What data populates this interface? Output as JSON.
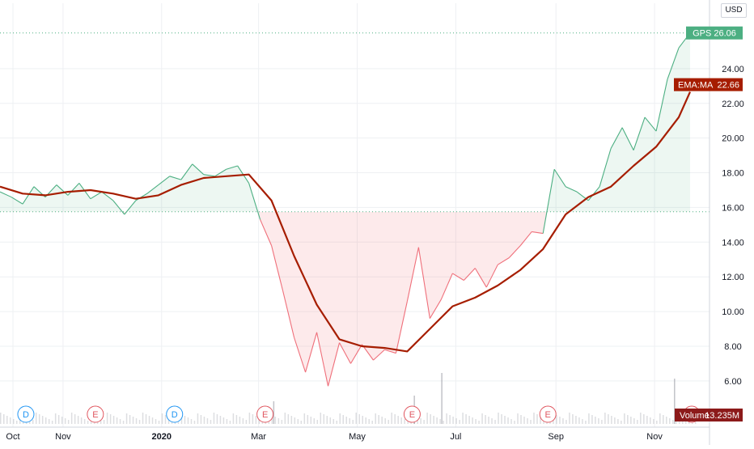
{
  "currency": "USD",
  "price_tag": {
    "text": "GPS  26.06",
    "color": "#4caf82"
  },
  "ema_tag": {
    "label": "EMA:MA",
    "value": "22.66",
    "color": "#a61d00"
  },
  "volume_tag": {
    "label": "Volume",
    "value": "13.235M",
    "color": "#8c1a1a"
  },
  "markers": [
    {
      "letter": "D",
      "kind": "dividend",
      "date": "2019-10-09"
    },
    {
      "letter": "E",
      "kind": "earnings",
      "date": "2019-11-21"
    },
    {
      "letter": "D",
      "kind": "dividend",
      "date": "2020-01-09"
    },
    {
      "letter": "E",
      "kind": "earnings",
      "date": "2020-03-05"
    },
    {
      "letter": "E",
      "kind": "earnings",
      "date": "2020-06-04"
    },
    {
      "letter": "E",
      "kind": "earnings",
      "date": "2020-08-27"
    },
    {
      "letter": "E",
      "kind": "earnings",
      "date": "2020-11-24"
    }
  ],
  "chart_data": {
    "type": "area",
    "symbol": "GPS",
    "baseline": 15.75,
    "x_labels": [
      "Oct",
      "Nov",
      "2020",
      "Mar",
      "May",
      "Jul",
      "Sep",
      "Nov"
    ],
    "x_label_dates": [
      "2019-10-01",
      "2019-11-01",
      "2020-01-01",
      "2020-03-01",
      "2020-05-01",
      "2020-07-01",
      "2020-09-01",
      "2020-11-01"
    ],
    "x_range": [
      "2019-09-23",
      "2020-11-29"
    ],
    "y_ticks": [
      6,
      8,
      10,
      12,
      14,
      16,
      18,
      20,
      22,
      24
    ],
    "ylim": [
      5.2,
      26.7
    ],
    "colors": {
      "up": "#4caf82",
      "down": "#ef6f7a",
      "ema": "#a61d00"
    },
    "series": [
      {
        "name": "GPS",
        "points": [
          [
            "2019-09-23",
            16.9
          ],
          [
            "2019-09-30",
            16.6
          ],
          [
            "2019-10-07",
            16.2
          ],
          [
            "2019-10-14",
            17.2
          ],
          [
            "2019-10-21",
            16.6
          ],
          [
            "2019-10-28",
            17.3
          ],
          [
            "2019-11-04",
            16.7
          ],
          [
            "2019-11-11",
            17.4
          ],
          [
            "2019-11-18",
            16.5
          ],
          [
            "2019-11-25",
            16.9
          ],
          [
            "2019-12-02",
            16.4
          ],
          [
            "2019-12-09",
            15.6
          ],
          [
            "2019-12-16",
            16.4
          ],
          [
            "2019-12-23",
            16.8
          ],
          [
            "2019-12-30",
            17.3
          ],
          [
            "2020-01-06",
            17.8
          ],
          [
            "2020-01-13",
            17.6
          ],
          [
            "2020-01-20",
            18.5
          ],
          [
            "2020-01-27",
            17.9
          ],
          [
            "2020-02-03",
            17.8
          ],
          [
            "2020-02-10",
            18.2
          ],
          [
            "2020-02-17",
            18.4
          ],
          [
            "2020-02-24",
            17.4
          ],
          [
            "2020-03-02",
            15.3
          ],
          [
            "2020-03-09",
            13.8
          ],
          [
            "2020-03-16",
            11.2
          ],
          [
            "2020-03-23",
            8.5
          ],
          [
            "2020-03-30",
            6.5
          ],
          [
            "2020-04-06",
            8.8
          ],
          [
            "2020-04-13",
            5.7
          ],
          [
            "2020-04-20",
            8.2
          ],
          [
            "2020-04-27",
            7.0
          ],
          [
            "2020-05-04",
            8.1
          ],
          [
            "2020-05-11",
            7.2
          ],
          [
            "2020-05-18",
            7.8
          ],
          [
            "2020-05-25",
            7.6
          ],
          [
            "2020-06-01",
            10.6
          ],
          [
            "2020-06-08",
            13.7
          ],
          [
            "2020-06-15",
            9.6
          ],
          [
            "2020-06-22",
            10.7
          ],
          [
            "2020-06-29",
            12.2
          ],
          [
            "2020-07-06",
            11.8
          ],
          [
            "2020-07-13",
            12.5
          ],
          [
            "2020-07-20",
            11.4
          ],
          [
            "2020-07-27",
            12.7
          ],
          [
            "2020-08-03",
            13.1
          ],
          [
            "2020-08-10",
            13.8
          ],
          [
            "2020-08-17",
            14.6
          ],
          [
            "2020-08-24",
            14.5
          ],
          [
            "2020-08-31",
            18.2
          ],
          [
            "2020-09-07",
            17.2
          ],
          [
            "2020-09-14",
            16.9
          ],
          [
            "2020-09-21",
            16.4
          ],
          [
            "2020-09-28",
            17.2
          ],
          [
            "2020-10-05",
            19.4
          ],
          [
            "2020-10-12",
            20.6
          ],
          [
            "2020-10-19",
            19.3
          ],
          [
            "2020-10-26",
            21.2
          ],
          [
            "2020-11-02",
            20.4
          ],
          [
            "2020-11-09",
            23.4
          ],
          [
            "2020-11-16",
            25.2
          ],
          [
            "2020-11-23",
            26.06
          ]
        ]
      },
      {
        "name": "EMA:MA",
        "points": [
          [
            "2019-09-23",
            17.2
          ],
          [
            "2019-10-07",
            16.8
          ],
          [
            "2019-10-21",
            16.7
          ],
          [
            "2019-11-04",
            16.9
          ],
          [
            "2019-11-18",
            17.0
          ],
          [
            "2019-12-02",
            16.8
          ],
          [
            "2019-12-16",
            16.5
          ],
          [
            "2019-12-30",
            16.7
          ],
          [
            "2020-01-13",
            17.3
          ],
          [
            "2020-01-27",
            17.7
          ],
          [
            "2020-02-10",
            17.8
          ],
          [
            "2020-02-24",
            17.9
          ],
          [
            "2020-03-09",
            16.4
          ],
          [
            "2020-03-23",
            13.2
          ],
          [
            "2020-04-06",
            10.4
          ],
          [
            "2020-04-20",
            8.4
          ],
          [
            "2020-05-04",
            8.0
          ],
          [
            "2020-05-18",
            7.9
          ],
          [
            "2020-06-01",
            7.7
          ],
          [
            "2020-06-15",
            9.0
          ],
          [
            "2020-06-29",
            10.3
          ],
          [
            "2020-07-13",
            10.8
          ],
          [
            "2020-07-27",
            11.5
          ],
          [
            "2020-08-10",
            12.4
          ],
          [
            "2020-08-24",
            13.6
          ],
          [
            "2020-09-07",
            15.6
          ],
          [
            "2020-09-21",
            16.6
          ],
          [
            "2020-10-05",
            17.2
          ],
          [
            "2020-10-19",
            18.4
          ],
          [
            "2020-11-02",
            19.5
          ],
          [
            "2020-11-16",
            21.2
          ],
          [
            "2020-11-23",
            22.66
          ]
        ]
      }
    ],
    "volume": {
      "name": "Volume",
      "last": "13.235M",
      "spikes": [
        {
          "date": "2020-03-10",
          "height": 0.4
        },
        {
          "date": "2020-06-05",
          "height": 0.5
        },
        {
          "date": "2020-06-22",
          "height": 0.9
        },
        {
          "date": "2020-11-13",
          "height": 0.8
        }
      ]
    }
  }
}
